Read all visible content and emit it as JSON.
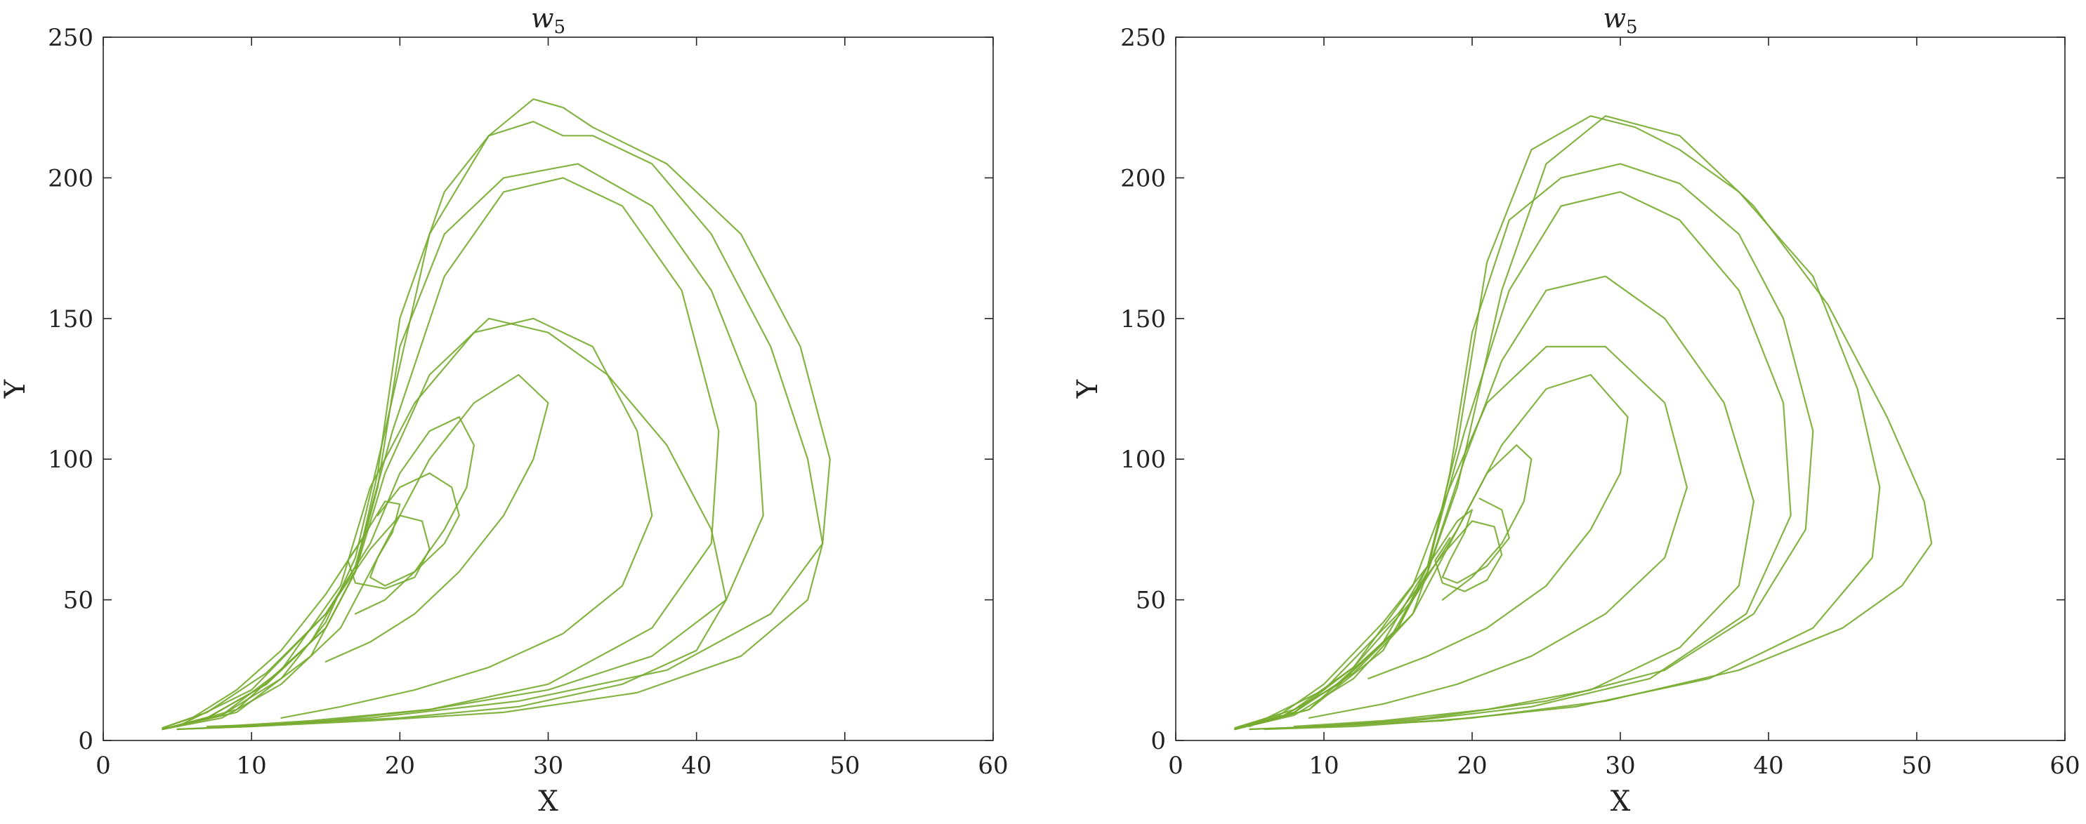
{
  "chart_data": [
    {
      "type": "line",
      "title": "w",
      "title_sub": "5",
      "xlabel": "X",
      "ylabel": "Y",
      "xlim": [
        0,
        60
      ],
      "ylim": [
        0,
        250
      ],
      "xticks": [
        "0",
        "10",
        "20",
        "30",
        "40",
        "50",
        "60"
      ],
      "yticks": [
        "0",
        "50",
        "100",
        "150",
        "200",
        "250"
      ],
      "grid": false,
      "color": "#77ac30",
      "series": [
        {
          "x": [
            4,
            6,
            9,
            12,
            15,
            17.5,
            19,
            20,
            19.5,
            18.5,
            18,
            19,
            21,
            23,
            24,
            23.5,
            22,
            20,
            18.5
          ],
          "y": [
            4.5,
            8,
            18,
            32,
            52,
            72,
            85,
            84,
            74,
            65,
            58,
            55,
            60,
            70,
            80,
            90,
            95,
            90,
            80
          ]
        },
        {
          "x": [
            4,
            7,
            11,
            15,
            18,
            20,
            22,
            24,
            25,
            24.5,
            23,
            21,
            19,
            17
          ],
          "y": [
            4.5,
            10,
            24,
            45,
            70,
            95,
            110,
            115,
            105,
            90,
            75,
            60,
            50,
            45
          ]
        },
        {
          "x": [
            4,
            8,
            12,
            16,
            19,
            22,
            25,
            28,
            30,
            29,
            27,
            24,
            21,
            18,
            15
          ],
          "y": [
            4,
            8,
            20,
            40,
            70,
            100,
            120,
            130,
            120,
            100,
            80,
            60,
            45,
            35,
            28
          ]
        },
        {
          "x": [
            4,
            8,
            12,
            16,
            18,
            21,
            25,
            29,
            33,
            36,
            37,
            35,
            31,
            26,
            21,
            16,
            12
          ],
          "y": [
            4,
            9,
            25,
            55,
            90,
            120,
            145,
            150,
            140,
            110,
            80,
            55,
            38,
            26,
            18,
            12,
            8
          ]
        },
        {
          "x": [
            4,
            7,
            11,
            15,
            17,
            18.5,
            20,
            23,
            27,
            32,
            37,
            41,
            44,
            44.5,
            42,
            37,
            30,
            22,
            15,
            9,
            5
          ],
          "y": [
            4,
            8,
            20,
            40,
            60,
            90,
            140,
            180,
            200,
            205,
            190,
            160,
            120,
            80,
            50,
            30,
            18,
            11,
            7,
            5,
            4
          ]
        },
        {
          "x": [
            4,
            7,
            11,
            15,
            17,
            18.5,
            20,
            23,
            26,
            29,
            31,
            33,
            37,
            41,
            45,
            47.5,
            48.5,
            47.5,
            43,
            36,
            27,
            18,
            10,
            5
          ],
          "y": [
            4,
            8,
            20,
            40,
            60,
            95,
            150,
            195,
            215,
            220,
            215,
            215,
            205,
            180,
            140,
            100,
            70,
            50,
            30,
            17,
            10,
            7,
            5,
            4
          ]
        },
        {
          "x": [
            4,
            8,
            12,
            15,
            17,
            19,
            22,
            26,
            29,
            31,
            33,
            38,
            43,
            47,
            49,
            48.5,
            45,
            38,
            28,
            18,
            10,
            5
          ],
          "y": [
            4,
            9,
            22,
            42,
            65,
            110,
            180,
            215,
            228,
            225,
            218,
            205,
            180,
            140,
            100,
            70,
            45,
            25,
            14,
            8,
            5,
            4
          ]
        },
        {
          "x": [
            4,
            9,
            14,
            17,
            19,
            22,
            26,
            30,
            34,
            38,
            41,
            42,
            40,
            35,
            28,
            20,
            13,
            7
          ],
          "y": [
            4,
            10,
            30,
            60,
            95,
            130,
            150,
            145,
            130,
            105,
            75,
            50,
            32,
            20,
            12,
            8,
            6,
            5
          ]
        },
        {
          "x": [
            5,
            10,
            15,
            18,
            20,
            21.5,
            22,
            21,
            19,
            17,
            16.5,
            17.5
          ],
          "y": [
            5,
            18,
            45,
            68,
            80,
            78,
            68,
            58,
            54,
            56,
            64,
            72
          ]
        },
        {
          "x": [
            4,
            9,
            14,
            17,
            19.5,
            23,
            27,
            31,
            35,
            39,
            41.5,
            41,
            37,
            30,
            22,
            14,
            8
          ],
          "y": [
            4,
            11,
            35,
            62,
            110,
            165,
            195,
            200,
            190,
            160,
            110,
            70,
            40,
            20,
            11,
            7,
            5
          ]
        }
      ]
    },
    {
      "type": "line",
      "title": "w",
      "title_sub": "5",
      "xlabel": "X",
      "ylabel": "Y",
      "xlim": [
        0,
        60
      ],
      "ylim": [
        0,
        250
      ],
      "xticks": [
        "0",
        "10",
        "20",
        "30",
        "40",
        "50",
        "60"
      ],
      "yticks": [
        "0",
        "50",
        "100",
        "150",
        "200",
        "250"
      ],
      "grid": false,
      "color": "#77ac30",
      "series": [
        {
          "x": [
            4,
            7,
            10,
            14,
            17,
            19,
            20,
            19.5,
            18.5,
            18,
            19,
            21,
            22.5,
            22,
            20.5
          ],
          "y": [
            4.5,
            9,
            20,
            42,
            62,
            78,
            82,
            74,
            64,
            58,
            56,
            62,
            72,
            82,
            86
          ]
        },
        {
          "x": [
            4,
            8,
            12,
            16,
            19,
            21,
            23,
            24,
            23.5,
            22,
            20,
            18
          ],
          "y": [
            4.5,
            11,
            26,
            50,
            75,
            95,
            105,
            100,
            85,
            70,
            58,
            50
          ]
        },
        {
          "x": [
            4,
            8,
            12,
            16,
            19,
            22,
            25,
            28,
            30.5,
            30,
            28,
            25,
            21,
            17,
            13
          ],
          "y": [
            4,
            9,
            22,
            45,
            75,
            105,
            125,
            130,
            115,
            95,
            75,
            55,
            40,
            30,
            22
          ]
        },
        {
          "x": [
            4,
            8,
            12,
            16,
            18.5,
            21,
            25,
            29,
            33,
            34.5,
            33,
            29,
            24,
            19,
            14,
            9
          ],
          "y": [
            4,
            10,
            26,
            55,
            90,
            120,
            140,
            140,
            120,
            90,
            65,
            45,
            30,
            20,
            13,
            8
          ]
        },
        {
          "x": [
            4,
            7,
            11,
            15,
            17,
            18.5,
            20,
            22.5,
            26,
            30,
            34,
            38,
            41,
            43,
            42.5,
            39,
            33,
            25,
            17,
            10,
            5
          ],
          "y": [
            4,
            8,
            20,
            40,
            60,
            95,
            145,
            185,
            200,
            205,
            198,
            180,
            150,
            110,
            75,
            45,
            25,
            14,
            8,
            5,
            4
          ]
        },
        {
          "x": [
            4,
            7,
            11,
            15,
            17,
            19,
            21,
            24,
            28,
            31,
            34,
            38,
            43,
            46,
            47.5,
            47,
            43,
            36,
            27,
            18,
            10,
            5
          ],
          "y": [
            4,
            8,
            20,
            40,
            62,
            105,
            170,
            210,
            222,
            218,
            210,
            195,
            165,
            125,
            90,
            65,
            40,
            22,
            12,
            7,
            5,
            4
          ]
        },
        {
          "x": [
            4,
            8,
            12,
            16,
            19,
            22,
            25,
            29,
            34,
            39,
            44,
            48,
            50.5,
            51,
            49,
            45,
            38,
            29,
            20,
            12,
            6
          ],
          "y": [
            4,
            10,
            24,
            45,
            90,
            160,
            205,
            222,
            215,
            190,
            155,
            115,
            85,
            70,
            55,
            40,
            25,
            14,
            8,
            5,
            4
          ]
        },
        {
          "x": [
            4,
            9,
            14,
            17,
            19.5,
            22,
            25,
            29,
            33,
            37,
            39,
            38,
            34,
            28,
            21,
            14,
            8
          ],
          "y": [
            4,
            11,
            32,
            60,
            100,
            135,
            160,
            165,
            150,
            120,
            85,
            55,
            33,
            18,
            11,
            7,
            5
          ]
        },
        {
          "x": [
            5,
            10,
            15,
            18,
            20,
            21.5,
            22,
            21,
            19.5,
            18,
            17.5,
            18.5
          ],
          "y": [
            5,
            18,
            45,
            66,
            78,
            76,
            66,
            57,
            53,
            56,
            64,
            72
          ]
        },
        {
          "x": [
            4,
            9,
            14,
            17,
            19.5,
            22.5,
            26,
            30,
            34,
            38,
            41,
            41.5,
            38.5,
            32,
            24,
            16,
            9
          ],
          "y": [
            4,
            11,
            35,
            62,
            110,
            160,
            190,
            195,
            185,
            160,
            120,
            80,
            45,
            22,
            12,
            7,
            5
          ]
        }
      ]
    }
  ]
}
